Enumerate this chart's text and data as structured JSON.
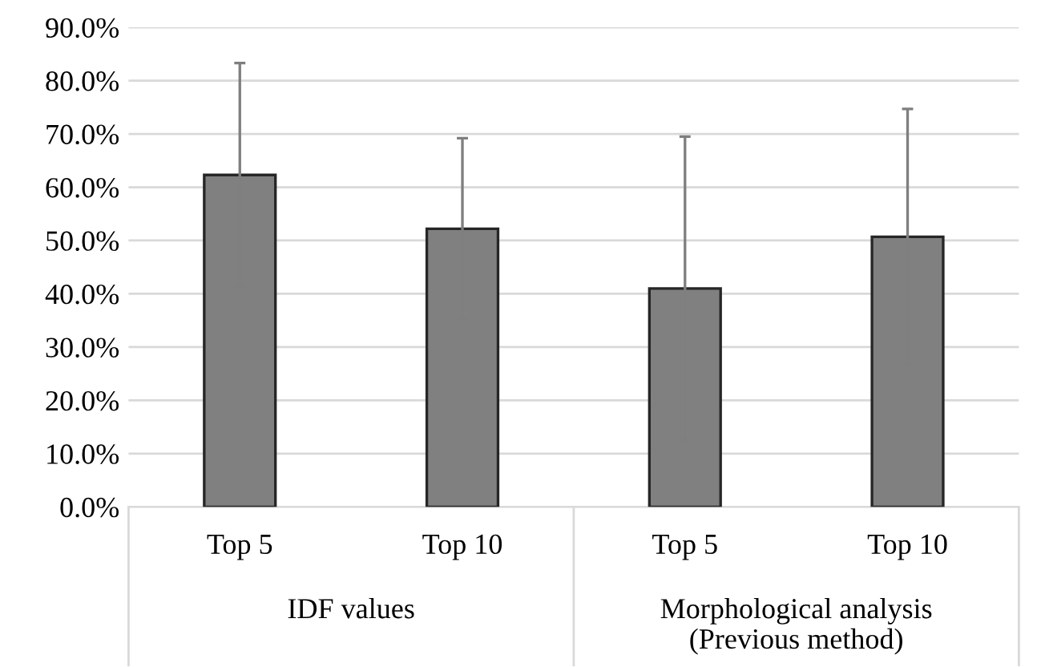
{
  "chart_data": {
    "type": "bar",
    "categories": [
      "Top 5",
      "Top 10",
      "Top 5",
      "Top 10"
    ],
    "values": [
      62.3,
      52.2,
      41.0,
      50.7
    ],
    "errors": [
      21,
      17,
      28.5,
      24
    ],
    "color": "#808080",
    "ylim": [
      0,
      90
    ],
    "yticks": [
      {
        "value": 0,
        "label": "0.0%"
      },
      {
        "value": 10,
        "label": "10.0%"
      },
      {
        "value": 20,
        "label": "20.0%"
      },
      {
        "value": 30,
        "label": "30.0%"
      },
      {
        "value": 40,
        "label": "40.0%"
      },
      {
        "value": 50,
        "label": "50.0%"
      },
      {
        "value": 60,
        "label": "60.0%"
      },
      {
        "value": 70,
        "label": "70.0%"
      },
      {
        "value": 80,
        "label": "80.0%"
      },
      {
        "value": 90,
        "label": "90.0%"
      }
    ],
    "grid": "y",
    "annotations": [
      "IDF values",
      "Morphological analysis\n(Previous method)"
    ]
  }
}
